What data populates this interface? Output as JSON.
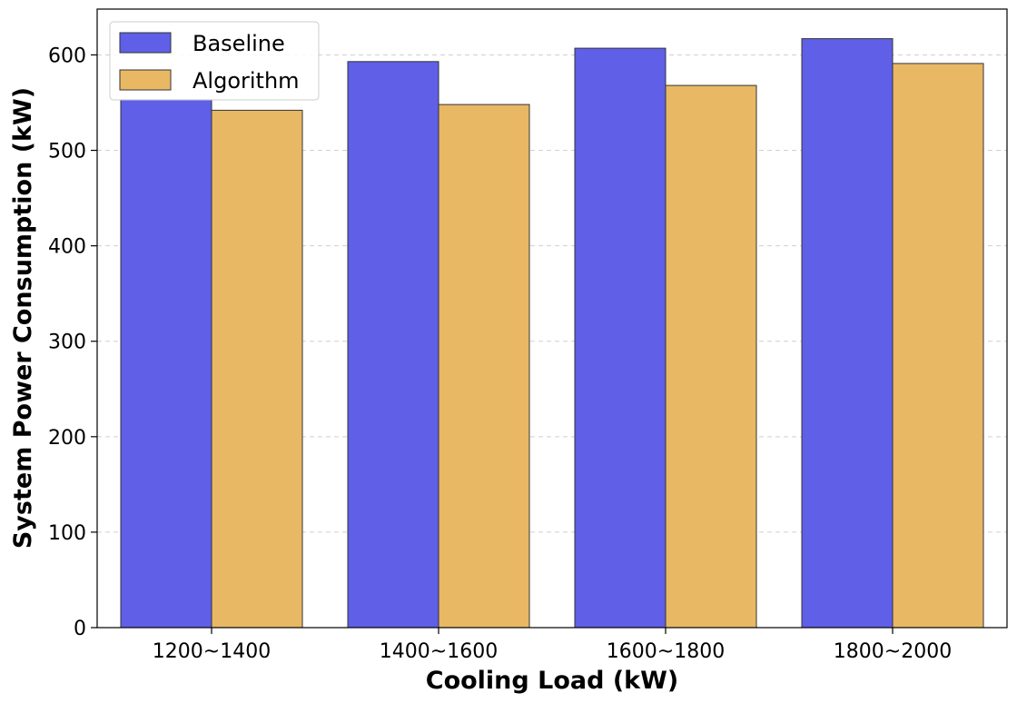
{
  "chart_data": {
    "type": "bar",
    "title": "",
    "xlabel": "Cooling Load (kW)",
    "ylabel": "System Power Consumption (kW)",
    "categories": [
      "1200~1400",
      "1400~1600",
      "1600~1800",
      "1800~2000"
    ],
    "series": [
      {
        "name": "Baseline",
        "color": "#5f5fe8",
        "values": [
          553,
          593,
          607,
          617
        ]
      },
      {
        "name": "Algorithm",
        "color": "#e8b864",
        "values": [
          542,
          548,
          568,
          591
        ]
      }
    ],
    "ylim": [
      0,
      648
    ],
    "yticks": [
      0,
      100,
      200,
      300,
      400,
      500,
      600
    ],
    "grid": "y-dashed",
    "legend_position": "top-left"
  }
}
